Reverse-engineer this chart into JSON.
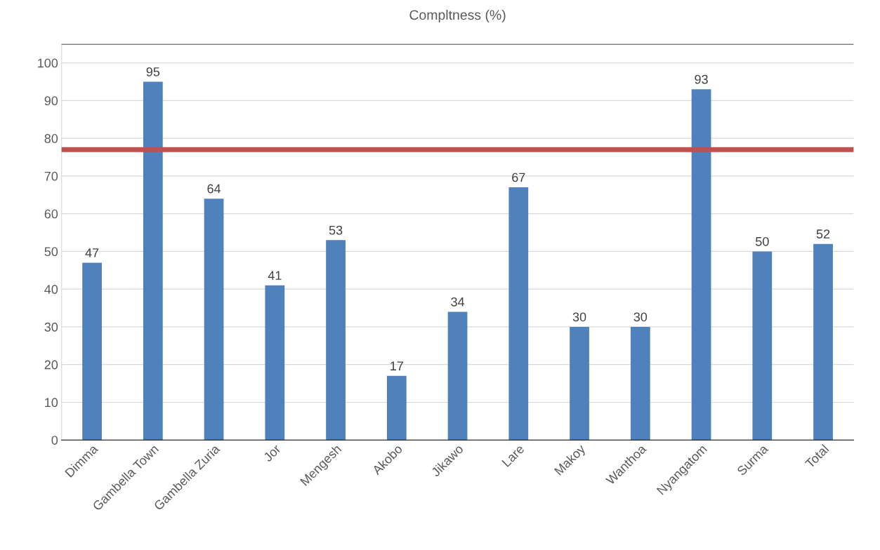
{
  "chart_data": {
    "type": "bar",
    "title": "Compltness (%)",
    "categories": [
      "Dimma",
      "Gambella Town",
      "Gambella Zuria",
      "Jor",
      "Mengesh",
      "Akobo",
      "Jikawo",
      "Lare",
      "Makoy",
      "Wanthoa",
      "Nyangatom",
      "Surma",
      "Total"
    ],
    "values": [
      47,
      95,
      64,
      41,
      53,
      17,
      34,
      67,
      30,
      30,
      93,
      50,
      52
    ],
    "color": "#4f81bd",
    "ylim": [
      0,
      105
    ],
    "yticks": [
      0,
      10,
      20,
      30,
      40,
      50,
      60,
      70,
      80,
      90,
      100
    ],
    "grid": "y",
    "data_labels": true,
    "legend": false,
    "ref_lines": [
      {
        "axis": "y",
        "value": 77,
        "color": "#c0504d",
        "line_style": "solid"
      },
      {
        "axis": "y",
        "value": 105,
        "color": "#000000",
        "line_style": "solid"
      }
    ]
  }
}
